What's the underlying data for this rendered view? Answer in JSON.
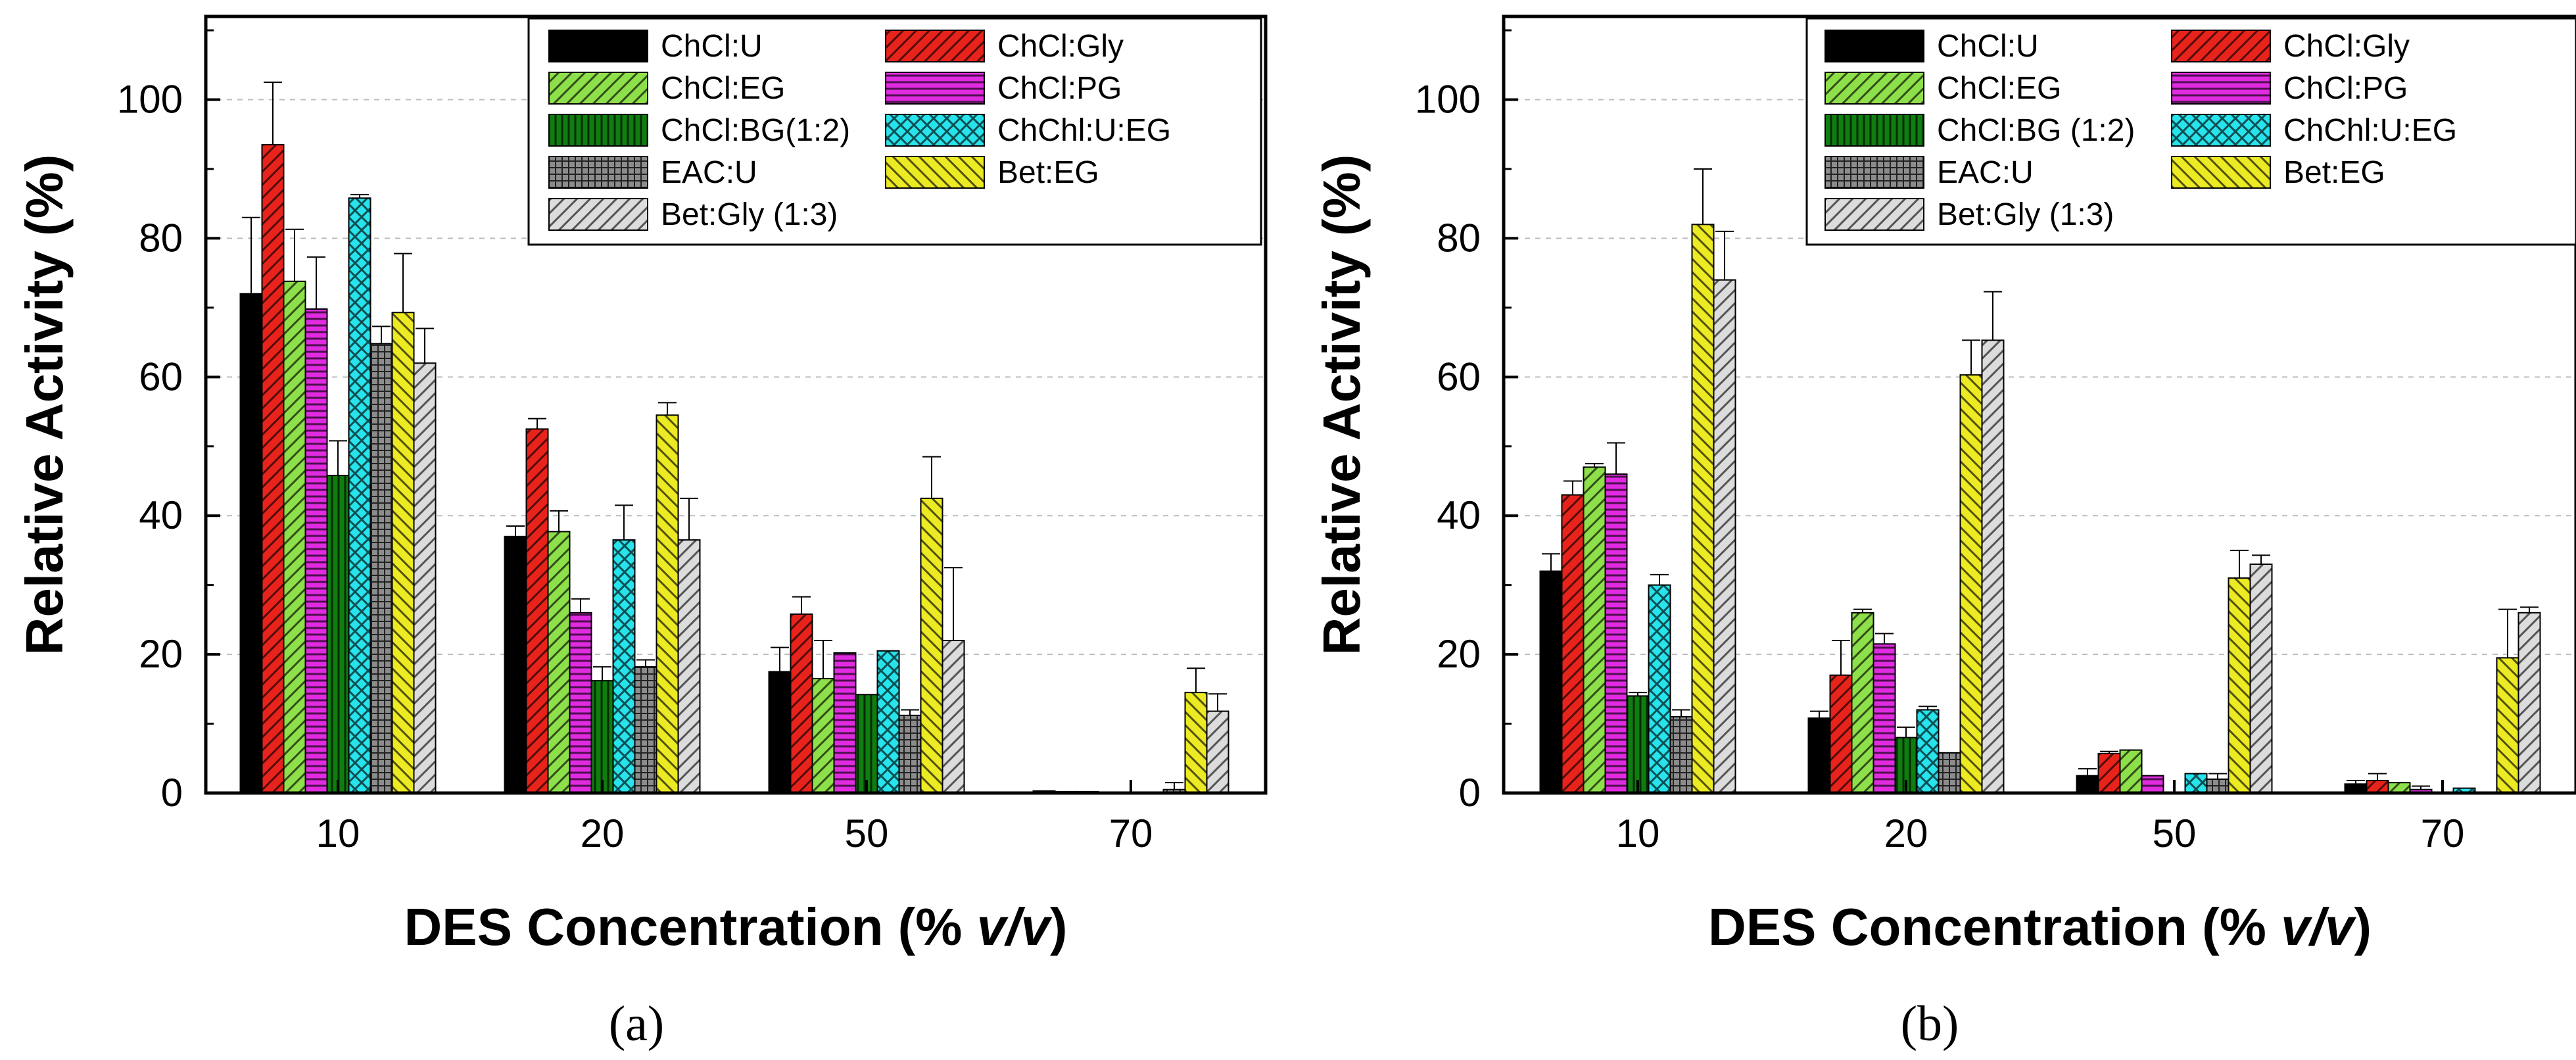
{
  "chart_data": [
    {
      "type": "bar",
      "panel_label": "(a)",
      "xlabel": "DES Concentration (% v/v)",
      "xlabel_prefix": "DES Concentration (% ",
      "xlabel_italic": "v/v",
      "xlabel_suffix": ")",
      "ylabel": "Relative Activity (%)",
      "ylim": [
        0,
        112
      ],
      "yticks": [
        0,
        20,
        40,
        60,
        80,
        100
      ],
      "grid": true,
      "legend_position": "top-right",
      "categories": [
        "10",
        "20",
        "50",
        "70"
      ],
      "series": [
        {
          "name": "ChCl:U",
          "color": "#000000",
          "pattern": "solid",
          "values": [
            72,
            37,
            17.5,
            0.3
          ],
          "errors": [
            11,
            1.5,
            3.5,
            0
          ]
        },
        {
          "name": "ChCl:Gly",
          "color": "#e8231b",
          "pattern": "diag-right",
          "values": [
            93.5,
            52.5,
            25.8,
            0.2
          ],
          "errors": [
            9,
            1.5,
            2.5,
            0
          ]
        },
        {
          "name": "ChCl:EG",
          "color": "#8ee04a",
          "pattern": "diag-right",
          "values": [
            73.8,
            37.7,
            16.5,
            0.2
          ],
          "errors": [
            7.5,
            3,
            5.5,
            0
          ]
        },
        {
          "name": "ChCl:PG",
          "color": "#e02be0",
          "pattern": "horizontal",
          "values": [
            69.8,
            26,
            20.2,
            0.1
          ],
          "errors": [
            7.5,
            2,
            0,
            0
          ]
        },
        {
          "name": "ChCl:BG(1:2)",
          "color": "#0f7d0f",
          "pattern": "vertical",
          "values": [
            45.8,
            16.2,
            14.2,
            0.1
          ],
          "errors": [
            5,
            2,
            0,
            0
          ]
        },
        {
          "name": "ChChl:U:EG",
          "color": "#27e3ec",
          "pattern": "cross",
          "values": [
            85.8,
            36.5,
            20.5,
            0.1
          ],
          "errors": [
            0.5,
            5,
            0,
            0
          ]
        },
        {
          "name": "EAC:U",
          "color": "#8c8c8c",
          "pattern": "grid",
          "values": [
            64.8,
            18.2,
            11.2,
            0.5
          ],
          "errors": [
            2.5,
            1,
            0.8,
            1
          ]
        },
        {
          "name": "Bet:EG",
          "color": "#ecea23",
          "pattern": "diag-left",
          "values": [
            69.3,
            54.5,
            42.5,
            14.5
          ],
          "errors": [
            8.5,
            1.8,
            6,
            3.5
          ]
        },
        {
          "name": "Bet:Gly (1:3)",
          "color": "#dcdcdc",
          "pattern": "diag-right",
          "values": [
            62,
            36.5,
            22,
            11.8
          ],
          "errors": [
            5,
            6,
            10.5,
            2.5
          ]
        }
      ]
    },
    {
      "type": "bar",
      "panel_label": "(b)",
      "xlabel": "DES Concentration (% v/v)",
      "xlabel_prefix": "DES Concentration (% ",
      "xlabel_italic": "v/v",
      "xlabel_suffix": ")",
      "ylabel": "Relative Activity (%)",
      "ylim": [
        0,
        112
      ],
      "yticks": [
        0,
        20,
        40,
        60,
        80,
        100
      ],
      "grid": true,
      "legend_position": "top-right",
      "categories": [
        "10",
        "20",
        "50",
        "70"
      ],
      "series": [
        {
          "name": "ChCl:U",
          "color": "#000000",
          "pattern": "solid",
          "values": [
            32,
            10.8,
            2.5,
            1.3
          ],
          "errors": [
            2.5,
            1,
            1,
            0.5
          ]
        },
        {
          "name": "ChCl:Gly",
          "color": "#e8231b",
          "pattern": "diag-right",
          "values": [
            43,
            17,
            5.7,
            1.8
          ],
          "errors": [
            2,
            5,
            0.3,
            1
          ]
        },
        {
          "name": "ChCl:EG",
          "color": "#8ee04a",
          "pattern": "diag-right",
          "values": [
            47,
            26,
            6.2,
            1.5
          ],
          "errors": [
            0.5,
            0.5,
            0,
            0
          ]
        },
        {
          "name": "ChCl:PG",
          "color": "#e02be0",
          "pattern": "horizontal",
          "values": [
            46,
            21.5,
            2.5,
            0.5
          ],
          "errors": [
            4.5,
            1.5,
            0,
            0.5
          ]
        },
        {
          "name": "ChCl:BG (1:2)",
          "color": "#0f7d0f",
          "pattern": "vertical",
          "values": [
            14,
            8,
            0,
            0
          ],
          "errors": [
            0.5,
            1.5,
            0,
            0
          ]
        },
        {
          "name": "ChChl:U:EG",
          "color": "#27e3ec",
          "pattern": "cross",
          "values": [
            30,
            12,
            2.8,
            0.7
          ],
          "errors": [
            1.5,
            0.5,
            0,
            0
          ]
        },
        {
          "name": "EAC:U",
          "color": "#8c8c8c",
          "pattern": "grid",
          "values": [
            11,
            5.8,
            2,
            0
          ],
          "errors": [
            1,
            0,
            0.8,
            0
          ]
        },
        {
          "name": "Bet:EG",
          "color": "#ecea23",
          "pattern": "diag-left",
          "values": [
            82,
            60.3,
            31,
            19.5
          ],
          "errors": [
            8,
            5,
            4,
            7
          ]
        },
        {
          "name": "Bet:Gly (1:3)",
          "color": "#dcdcdc",
          "pattern": "diag-right",
          "values": [
            74,
            65.3,
            33,
            26
          ],
          "errors": [
            7,
            7,
            1.3,
            0.8
          ]
        }
      ]
    }
  ]
}
